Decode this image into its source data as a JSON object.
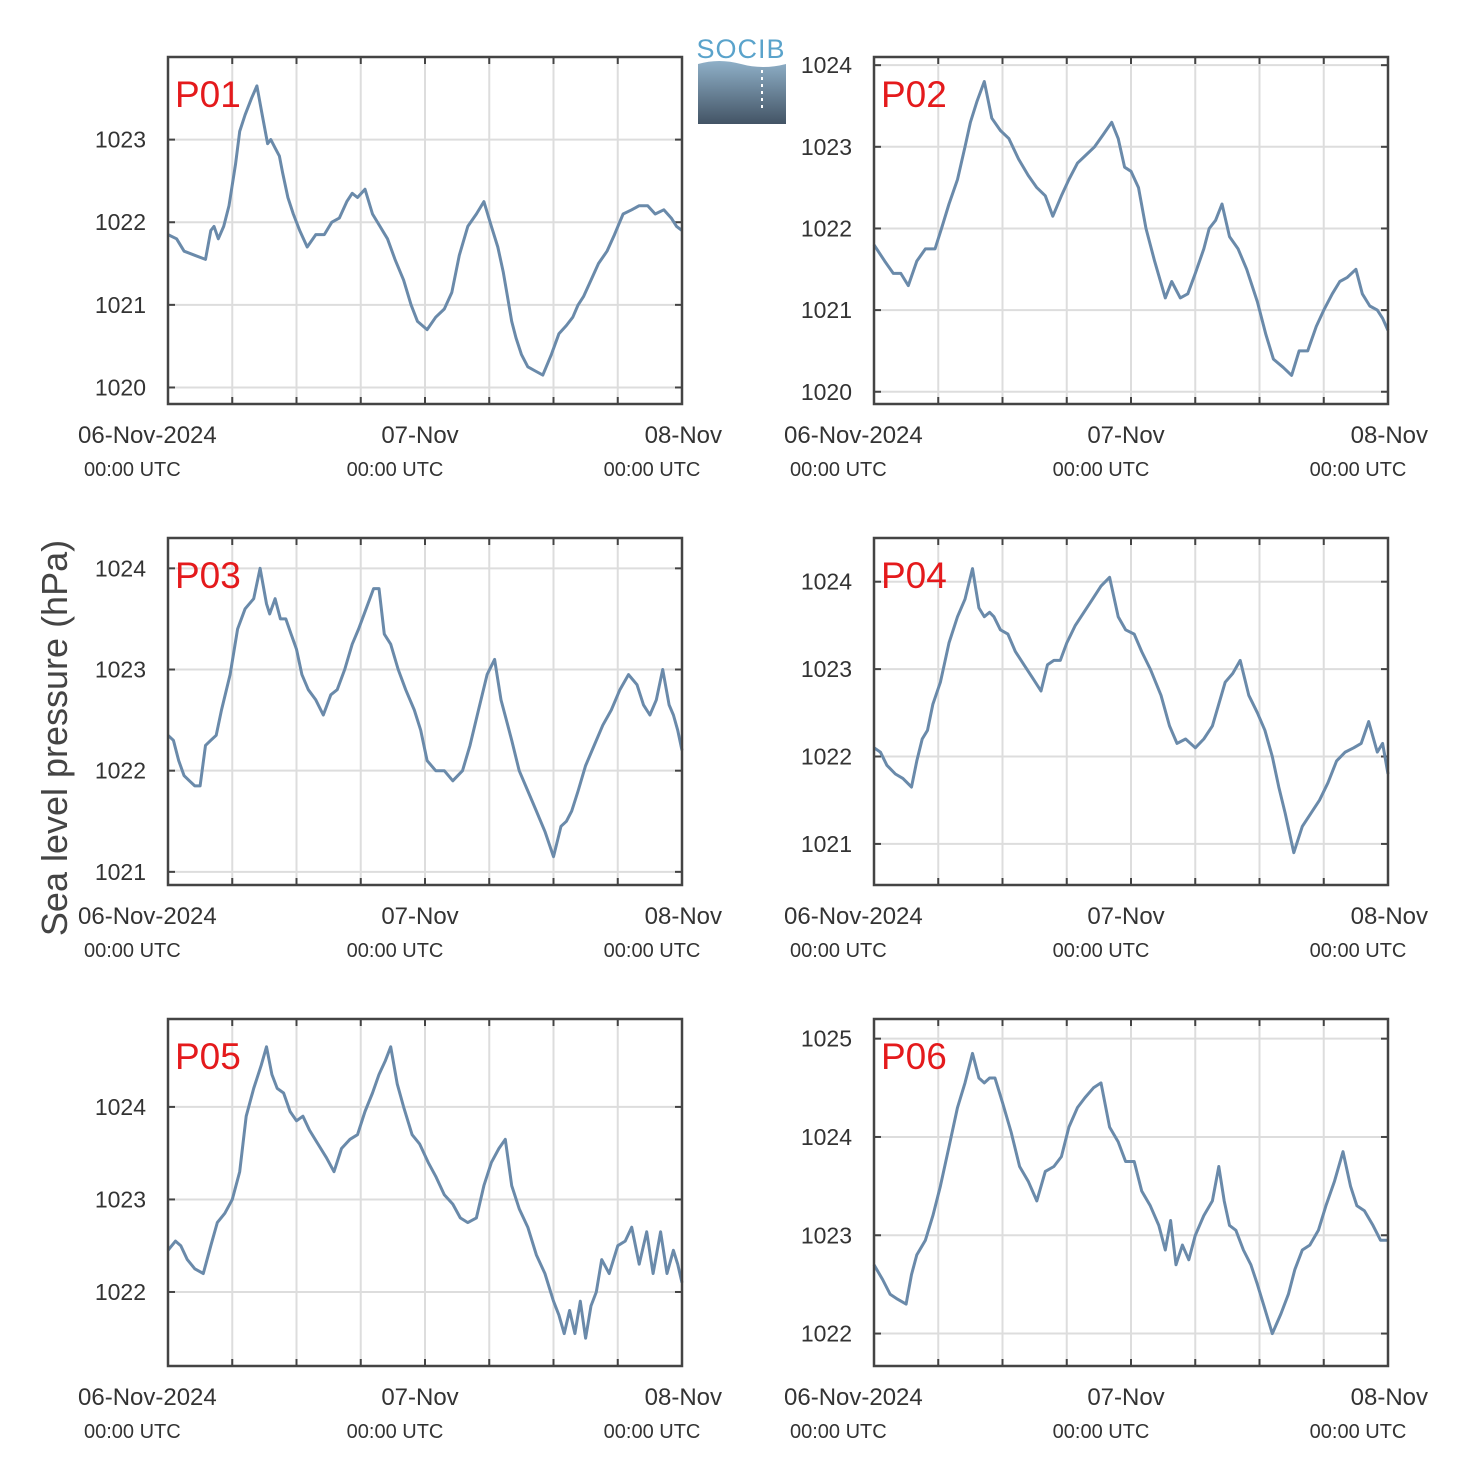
{
  "logo": {
    "text": "SOCIB",
    "colors": {
      "top": "#5aa3cb",
      "bottom": "#435465"
    }
  },
  "series_color": "#6a8aaa",
  "label_color": "#e41a1c",
  "chart_data": [
    {
      "type": "line",
      "panel": "P01",
      "ylabel": "Sea level pressure (hPa)",
      "x_ticks": [
        {
          "date": "06-Nov-2024",
          "time": "00:00 UTC"
        },
        {
          "date": "07-Nov",
          "time": "00:00 UTC"
        },
        {
          "date": "08-Nov",
          "time": "00:00 UTC"
        }
      ],
      "xlim_hours": [
        0,
        48
      ],
      "ylim": [
        1019.8,
        1024.0
      ],
      "yticks": [
        1020,
        1021,
        1022,
        1023
      ],
      "x_hours": [
        0,
        0.8,
        1.5,
        2.5,
        3.5,
        4,
        4.3,
        4.7,
        5.2,
        5.7,
        6.3,
        6.7,
        7.2,
        7.8,
        8.3,
        8.8,
        9.3,
        9.6,
        10,
        10.4,
        10.7,
        11.2,
        11.7,
        12.3,
        13,
        13.8,
        14.6,
        15.3,
        16,
        16.7,
        17.2,
        17.7,
        18.4,
        19.1,
        19.8,
        20.5,
        21.2,
        22,
        22.7,
        23.3,
        24.2,
        25,
        25.8,
        26.5,
        27.2,
        28,
        28.8,
        29.5,
        30.2,
        30.8,
        31.3,
        31.7,
        32.1,
        32.5,
        33,
        33.6,
        34.3,
        35,
        35.8,
        36.5,
        37.2,
        37.8,
        38.3,
        38.8,
        39.5,
        40.2,
        41,
        41.7,
        42.5,
        43.3,
        44,
        44.8,
        45.5,
        46.3,
        47,
        47.5,
        48
      ],
      "y": [
        1021.85,
        1021.8,
        1021.65,
        1021.6,
        1021.55,
        1021.9,
        1021.95,
        1021.8,
        1021.95,
        1022.2,
        1022.7,
        1023.1,
        1023.3,
        1023.5,
        1023.65,
        1023.3,
        1022.95,
        1023.0,
        1022.9,
        1022.8,
        1022.6,
        1022.3,
        1022.1,
        1021.9,
        1021.7,
        1021.85,
        1021.85,
        1022.0,
        1022.05,
        1022.25,
        1022.35,
        1022.3,
        1022.4,
        1022.1,
        1021.95,
        1021.8,
        1021.55,
        1021.3,
        1021.0,
        1020.8,
        1020.7,
        1020.85,
        1020.95,
        1021.15,
        1021.6,
        1021.95,
        1022.1,
        1022.25,
        1021.95,
        1021.7,
        1021.4,
        1021.1,
        1020.8,
        1020.6,
        1020.4,
        1020.25,
        1020.2,
        1020.15,
        1020.4,
        1020.65,
        1020.75,
        1020.85,
        1021.0,
        1021.1,
        1021.3,
        1021.5,
        1021.65,
        1021.85,
        1022.1,
        1022.15,
        1022.2,
        1022.2,
        1022.1,
        1022.15,
        1022.05,
        1021.95,
        1021.9
      ]
    },
    {
      "type": "line",
      "panel": "P02",
      "x_ticks": [
        {
          "date": "06-Nov-2024",
          "time": "00:00 UTC"
        },
        {
          "date": "07-Nov",
          "time": "00:00 UTC"
        },
        {
          "date": "08-Nov",
          "time": "00:00 UTC"
        }
      ],
      "xlim_hours": [
        0,
        48
      ],
      "ylim": [
        1019.85,
        1024.1
      ],
      "yticks": [
        1020,
        1021,
        1022,
        1023,
        1024
      ],
      "x_hours": [
        0,
        1,
        1.8,
        2.5,
        3.2,
        4,
        4.8,
        5.7,
        6.3,
        7,
        7.8,
        8.5,
        9,
        9.6,
        10.3,
        11,
        11.8,
        12.6,
        13.5,
        14.4,
        15.2,
        16,
        16.7,
        17.5,
        18.2,
        19,
        19.8,
        20.6,
        21.4,
        22.2,
        22.8,
        23.4,
        24,
        24.7,
        25.4,
        26.2,
        27.2,
        27.8,
        28.6,
        29.3,
        30,
        30.8,
        31.3,
        31.9,
        32.5,
        33.2,
        34,
        34.8,
        35.8,
        36.6,
        37.3,
        38.2,
        39,
        39.7,
        40.5,
        41.3,
        42,
        42.8,
        43.5,
        44.2,
        45,
        45.6,
        46.3,
        47,
        47.5,
        48
      ],
      "y": [
        1021.8,
        1021.6,
        1021.45,
        1021.45,
        1021.3,
        1021.6,
        1021.75,
        1021.75,
        1022.0,
        1022.3,
        1022.6,
        1023.0,
        1023.3,
        1023.55,
        1023.8,
        1023.35,
        1023.2,
        1023.1,
        1022.85,
        1022.65,
        1022.5,
        1022.4,
        1022.15,
        1022.4,
        1022.6,
        1022.8,
        1022.9,
        1023.0,
        1023.15,
        1023.3,
        1023.1,
        1022.75,
        1022.7,
        1022.5,
        1022.0,
        1021.6,
        1021.15,
        1021.35,
        1021.15,
        1021.2,
        1021.45,
        1021.75,
        1022.0,
        1022.1,
        1022.3,
        1021.9,
        1021.75,
        1021.5,
        1021.1,
        1020.7,
        1020.4,
        1020.3,
        1020.2,
        1020.5,
        1020.5,
        1020.8,
        1021.0,
        1021.2,
        1021.35,
        1021.4,
        1021.5,
        1021.2,
        1021.05,
        1021.0,
        1020.9,
        1020.75
      ]
    },
    {
      "type": "line",
      "panel": "P03",
      "x_ticks": [
        {
          "date": "06-Nov-2024",
          "time": "00:00 UTC"
        },
        {
          "date": "07-Nov",
          "time": "00:00 UTC"
        },
        {
          "date": "08-Nov",
          "time": "00:00 UTC"
        }
      ],
      "xlim_hours": [
        0,
        48
      ],
      "ylim": [
        1020.87,
        1024.3
      ],
      "yticks": [
        1021,
        1022,
        1023,
        1024
      ],
      "x_hours": [
        0,
        0.5,
        1,
        1.5,
        2,
        2.5,
        3,
        3.5,
        4,
        4.5,
        5,
        5.8,
        6.5,
        7.2,
        8,
        8.6,
        9.2,
        9.5,
        10,
        10.5,
        11,
        11.5,
        12,
        12.5,
        13.1,
        13.8,
        14.5,
        15.2,
        15.8,
        16.5,
        17.2,
        17.8,
        18.5,
        19.2,
        19.7,
        20.2,
        20.8,
        21.5,
        22.2,
        23,
        23.6,
        24.2,
        25,
        25.8,
        26.6,
        27.5,
        28.2,
        29,
        29.8,
        30.5,
        31.1,
        31.6,
        32.1,
        32.8,
        33.6,
        34.4,
        35.2,
        36,
        36.7,
        37.2,
        37.7,
        38.3,
        39,
        39.8,
        40.6,
        41.4,
        42.2,
        43,
        43.8,
        44.4,
        45,
        45.6,
        46.2,
        46.8,
        47.2,
        47.6,
        48
      ],
      "y": [
        1022.35,
        1022.3,
        1022.1,
        1021.95,
        1021.9,
        1021.85,
        1021.85,
        1022.25,
        1022.3,
        1022.35,
        1022.6,
        1022.95,
        1023.4,
        1023.6,
        1023.7,
        1024.0,
        1023.65,
        1023.55,
        1023.7,
        1023.5,
        1023.5,
        1023.35,
        1023.2,
        1022.95,
        1022.8,
        1022.7,
        1022.55,
        1022.75,
        1022.8,
        1023.0,
        1023.25,
        1023.4,
        1023.6,
        1023.8,
        1023.8,
        1023.35,
        1023.25,
        1023.0,
        1022.8,
        1022.6,
        1022.4,
        1022.1,
        1022.0,
        1022.0,
        1021.9,
        1022.0,
        1022.25,
        1022.6,
        1022.95,
        1023.1,
        1022.7,
        1022.5,
        1022.3,
        1022.0,
        1021.8,
        1021.6,
        1021.4,
        1021.15,
        1021.45,
        1021.5,
        1021.6,
        1021.8,
        1022.05,
        1022.25,
        1022.45,
        1022.6,
        1022.8,
        1022.95,
        1022.85,
        1022.65,
        1022.55,
        1022.7,
        1023.0,
        1022.65,
        1022.55,
        1022.4,
        1022.2
      ]
    },
    {
      "type": "line",
      "panel": "P04",
      "x_ticks": [
        {
          "date": "06-Nov-2024",
          "time": "00:00 UTC"
        },
        {
          "date": "07-Nov",
          "time": "00:00 UTC"
        },
        {
          "date": "08-Nov",
          "time": "00:00 UTC"
        }
      ],
      "xlim_hours": [
        0,
        48
      ],
      "ylim": [
        1020.53,
        1024.5
      ],
      "yticks": [
        1021,
        1022,
        1023,
        1024
      ],
      "x_hours": [
        0,
        0.6,
        1.2,
        2,
        2.7,
        3.5,
        4,
        4.5,
        5,
        5.5,
        6.2,
        7,
        7.8,
        8.5,
        9.2,
        9.8,
        10.3,
        10.8,
        11.2,
        11.8,
        12.5,
        13.2,
        14,
        14.8,
        15.6,
        16.2,
        16.8,
        17.4,
        18,
        18.8,
        19.6,
        20.4,
        21.2,
        22,
        22.8,
        23.5,
        24.3,
        25,
        25.8,
        26.8,
        27.6,
        28.3,
        29.1,
        30,
        30.8,
        31.6,
        32.2,
        32.8,
        33.5,
        34.2,
        35,
        35.8,
        36.5,
        37.2,
        37.8,
        38.4,
        39.2,
        40,
        40.8,
        41.6,
        42.4,
        43.2,
        44,
        44.8,
        45.5,
        46.2,
        47,
        47.5,
        48
      ],
      "y": [
        1022.1,
        1022.05,
        1021.9,
        1021.8,
        1021.75,
        1021.65,
        1021.95,
        1022.2,
        1022.3,
        1022.6,
        1022.85,
        1023.3,
        1023.6,
        1023.8,
        1024.15,
        1023.7,
        1023.6,
        1023.65,
        1023.6,
        1023.45,
        1023.4,
        1023.2,
        1023.05,
        1022.9,
        1022.75,
        1023.05,
        1023.1,
        1023.1,
        1023.3,
        1023.5,
        1023.65,
        1023.8,
        1023.95,
        1024.05,
        1023.6,
        1023.45,
        1023.4,
        1023.2,
        1023.0,
        1022.7,
        1022.35,
        1022.15,
        1022.2,
        1022.1,
        1022.2,
        1022.35,
        1022.6,
        1022.85,
        1022.95,
        1023.1,
        1022.7,
        1022.5,
        1022.3,
        1022.0,
        1021.65,
        1021.35,
        1020.9,
        1021.2,
        1021.35,
        1021.5,
        1021.7,
        1021.95,
        1022.05,
        1022.1,
        1022.15,
        1022.4,
        1022.05,
        1022.15,
        1021.8
      ]
    },
    {
      "type": "line",
      "panel": "P05",
      "x_ticks": [
        {
          "date": "06-Nov-2024",
          "time": "00:00 UTC"
        },
        {
          "date": "07-Nov",
          "time": "00:00 UTC"
        },
        {
          "date": "08-Nov",
          "time": "00:00 UTC"
        }
      ],
      "xlim_hours": [
        0,
        48
      ],
      "ylim": [
        1021.2,
        1024.95
      ],
      "yticks": [
        1022,
        1023,
        1024
      ],
      "x_hours": [
        0,
        0.7,
        1.2,
        1.8,
        2.5,
        3.3,
        4,
        4.6,
        5.3,
        6,
        6.7,
        7.3,
        8,
        8.7,
        9.2,
        9.7,
        10.2,
        10.8,
        11.4,
        12,
        12.6,
        13.2,
        14,
        14.8,
        15.5,
        16.2,
        17,
        17.7,
        18.4,
        19.1,
        19.7,
        20.3,
        20.8,
        21.4,
        22,
        22.8,
        23.5,
        24.3,
        25,
        25.8,
        26.6,
        27.3,
        28,
        28.8,
        29.5,
        30.2,
        30.9,
        31.5,
        32.1,
        32.8,
        33.6,
        34.4,
        35.2,
        36,
        36.5,
        37,
        37.5,
        38,
        38.5,
        39,
        39.5,
        40,
        40.5,
        41.2,
        42,
        42.7,
        43.3,
        44,
        44.7,
        45.3,
        46,
        46.6,
        47.2,
        47.6,
        48
      ],
      "y": [
        1022.45,
        1022.55,
        1022.5,
        1022.35,
        1022.25,
        1022.2,
        1022.5,
        1022.75,
        1022.85,
        1023.0,
        1023.3,
        1023.9,
        1024.2,
        1024.45,
        1024.65,
        1024.35,
        1024.2,
        1024.15,
        1023.95,
        1023.85,
        1023.9,
        1023.75,
        1023.6,
        1023.45,
        1023.3,
        1023.55,
        1023.65,
        1023.7,
        1023.95,
        1024.15,
        1024.35,
        1024.5,
        1024.65,
        1024.25,
        1024.0,
        1023.7,
        1023.6,
        1023.4,
        1023.25,
        1023.05,
        1022.95,
        1022.8,
        1022.75,
        1022.8,
        1023.15,
        1023.4,
        1023.55,
        1023.65,
        1023.15,
        1022.9,
        1022.7,
        1022.4,
        1022.2,
        1021.9,
        1021.75,
        1021.55,
        1021.8,
        1021.55,
        1021.9,
        1021.5,
        1021.85,
        1022.0,
        1022.35,
        1022.2,
        1022.5,
        1022.55,
        1022.7,
        1022.3,
        1022.65,
        1022.2,
        1022.65,
        1022.2,
        1022.45,
        1022.3,
        1022.1
      ]
    },
    {
      "type": "line",
      "panel": "P06",
      "x_ticks": [
        {
          "date": "06-Nov-2024",
          "time": "00:00 UTC"
        },
        {
          "date": "07-Nov",
          "time": "00:00 UTC"
        },
        {
          "date": "08-Nov",
          "time": "00:00 UTC"
        }
      ],
      "xlim_hours": [
        0,
        48
      ],
      "ylim": [
        1021.67,
        1025.2
      ],
      "yticks": [
        1022,
        1023,
        1024,
        1025
      ],
      "x_hours": [
        0,
        0.8,
        1.5,
        2.2,
        3,
        3.5,
        4,
        4.8,
        5.5,
        6.2,
        7,
        7.8,
        8.5,
        9.2,
        9.8,
        10.3,
        10.8,
        11.3,
        12,
        12.8,
        13.6,
        14.4,
        15.2,
        16,
        16.8,
        17.5,
        18.2,
        19,
        19.7,
        20.5,
        21.2,
        22,
        22.8,
        23.5,
        24.3,
        25,
        25.8,
        26.6,
        27.2,
        27.7,
        28.2,
        28.8,
        29.4,
        30,
        30.8,
        31.6,
        32.2,
        32.7,
        33.2,
        33.8,
        34.5,
        35.2,
        35.8,
        36.5,
        37.2,
        38,
        38.7,
        39.3,
        40,
        40.7,
        41.5,
        42.2,
        43,
        43.8,
        44.5,
        45.1,
        45.8,
        46.6,
        47.3,
        48
      ],
      "y": [
        1022.7,
        1022.55,
        1022.4,
        1022.35,
        1022.3,
        1022.6,
        1022.8,
        1022.95,
        1023.2,
        1023.5,
        1023.9,
        1024.3,
        1024.55,
        1024.85,
        1024.6,
        1024.55,
        1024.6,
        1024.6,
        1024.35,
        1024.05,
        1023.7,
        1023.55,
        1023.35,
        1023.65,
        1023.7,
        1023.8,
        1024.1,
        1024.3,
        1024.4,
        1024.5,
        1024.55,
        1024.1,
        1023.95,
        1023.75,
        1023.75,
        1023.45,
        1023.3,
        1023.1,
        1022.85,
        1023.15,
        1022.7,
        1022.9,
        1022.75,
        1023.0,
        1023.2,
        1023.35,
        1023.7,
        1023.35,
        1023.1,
        1023.05,
        1022.85,
        1022.7,
        1022.5,
        1022.25,
        1022.0,
        1022.2,
        1022.4,
        1022.65,
        1022.85,
        1022.9,
        1023.05,
        1023.3,
        1023.55,
        1023.85,
        1023.5,
        1023.3,
        1023.25,
        1023.1,
        1022.95,
        1022.95
      ]
    }
  ]
}
